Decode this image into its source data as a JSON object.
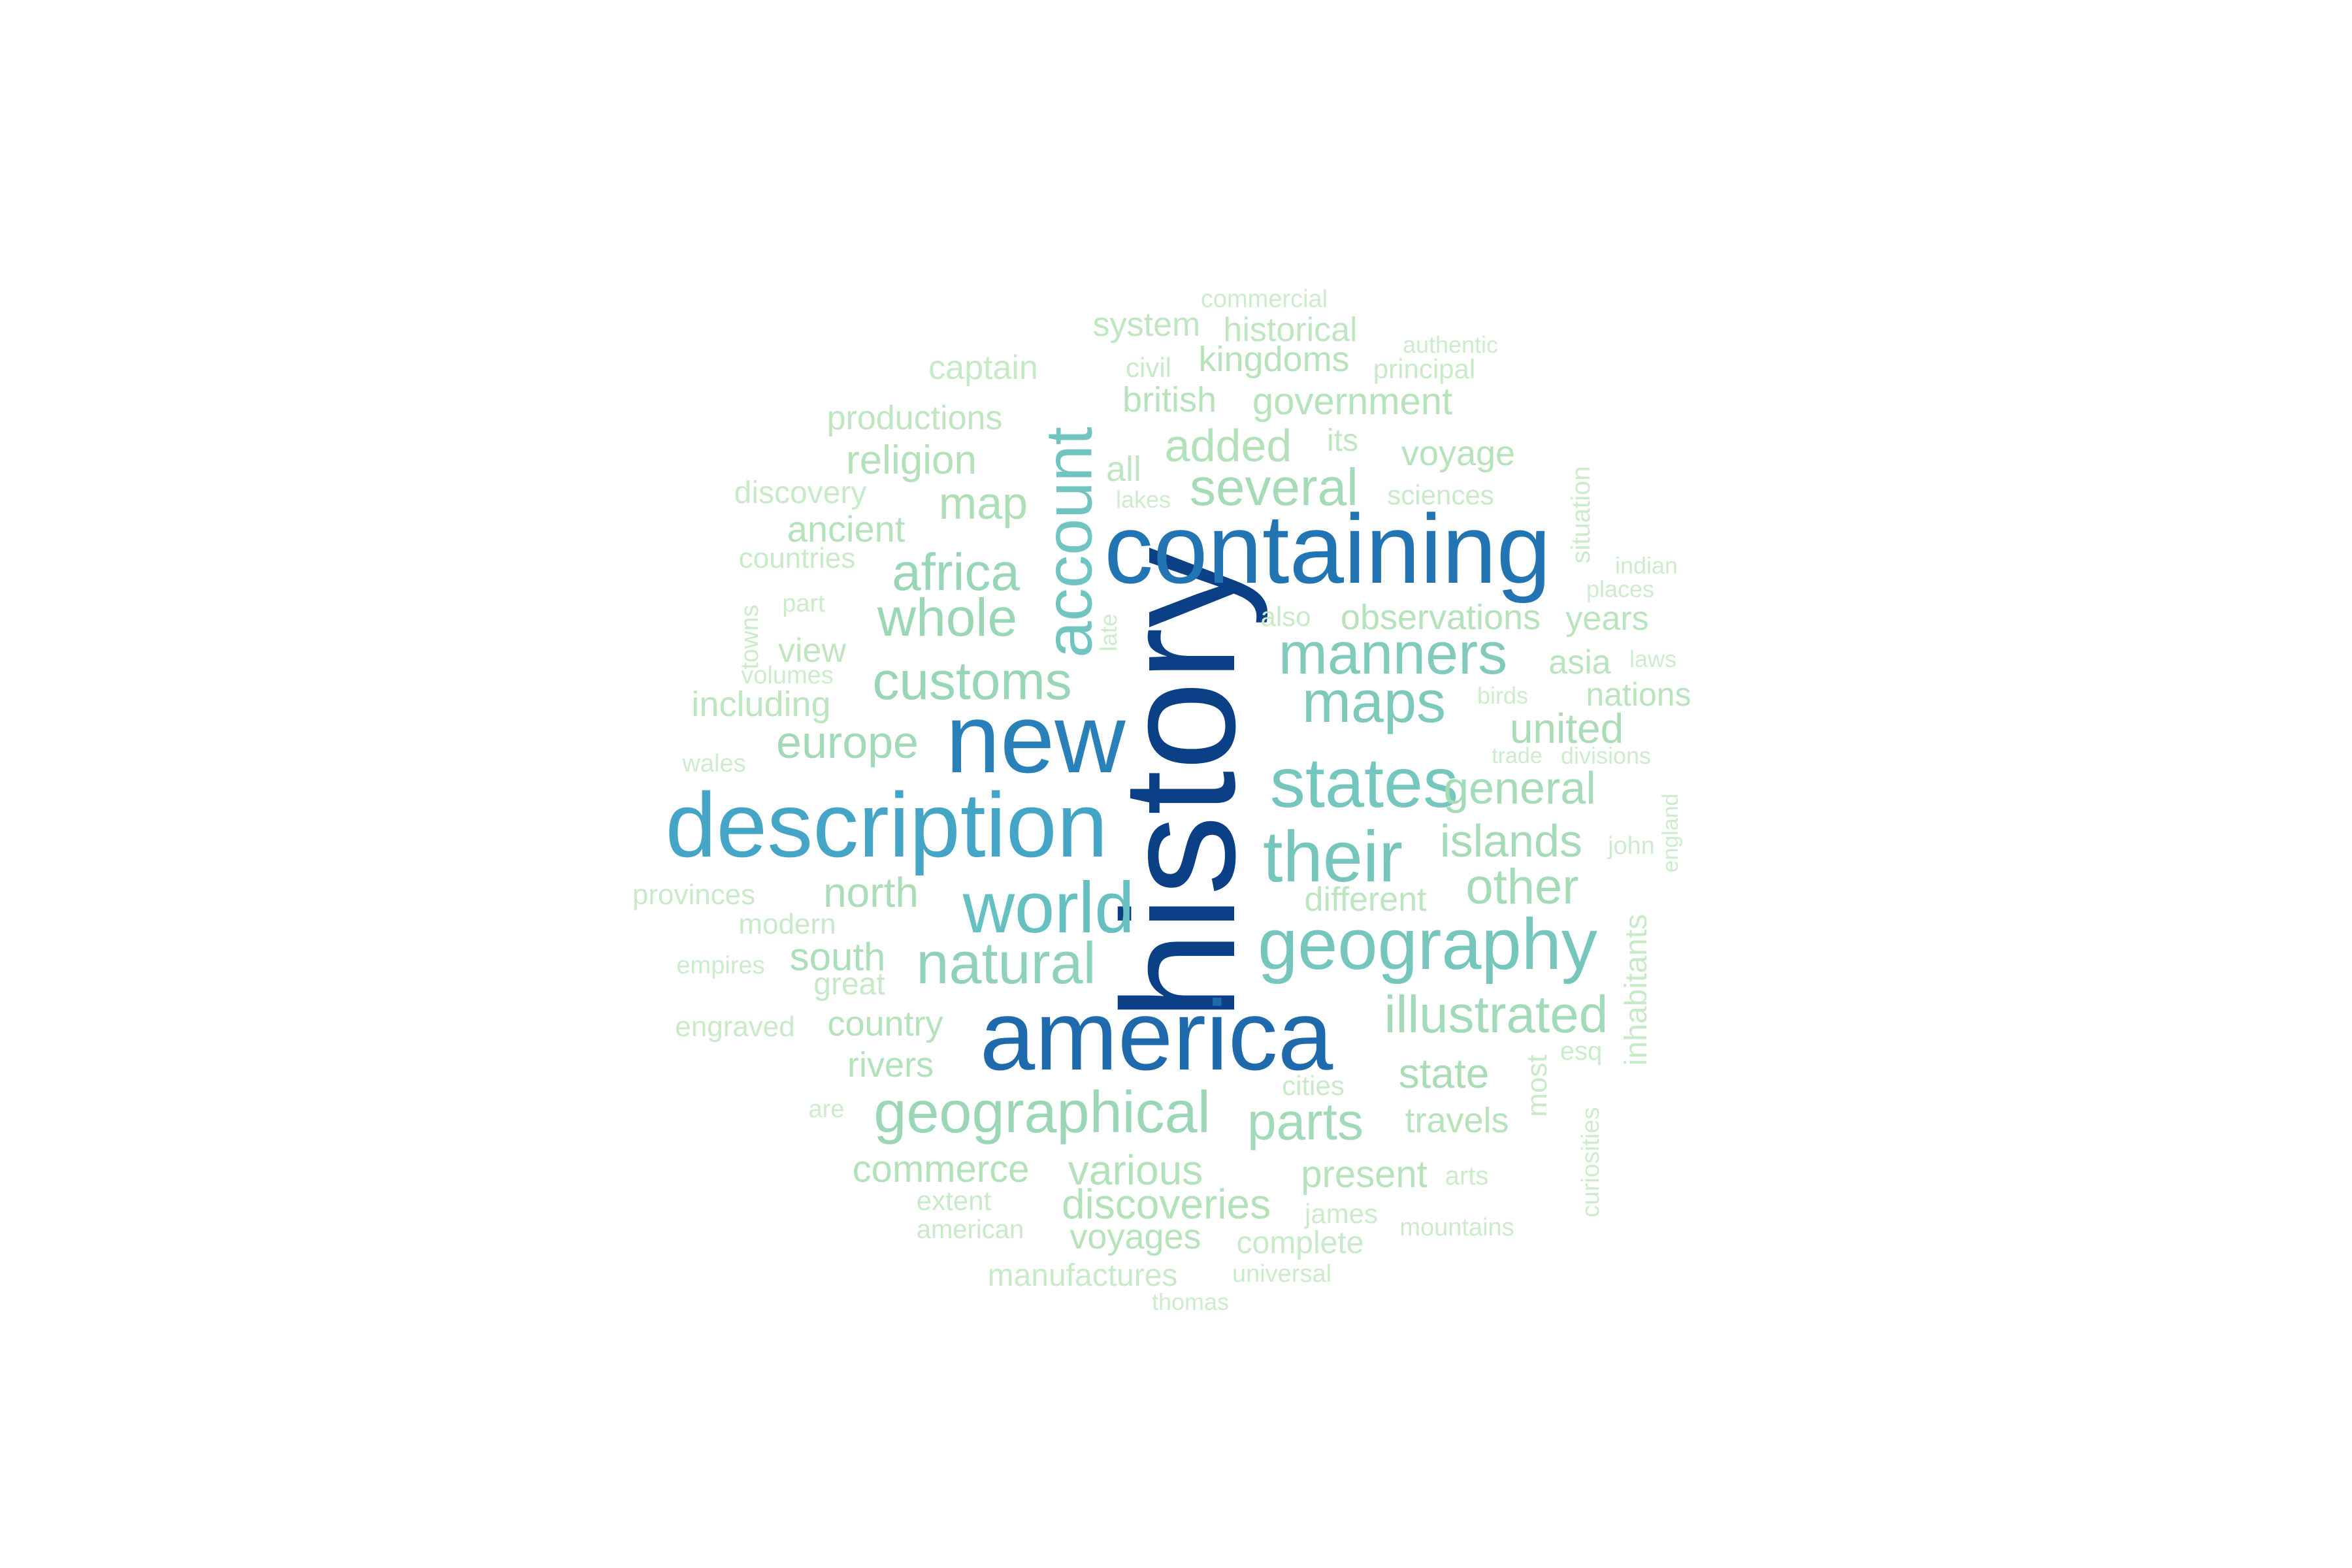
{
  "wordcloud": {
    "words": [
      {
        "text": "history",
        "color": "#0b3f86"
      },
      {
        "text": "america",
        "color": "#1f6aac"
      },
      {
        "text": "containing",
        "color": "#2274b3"
      },
      {
        "text": "new",
        "color": "#2a81ba"
      },
      {
        "text": "description",
        "color": "#44a5c6"
      },
      {
        "text": "account",
        "color": "#72c4c0"
      },
      {
        "text": "world",
        "color": "#66bfc1"
      },
      {
        "text": "states",
        "color": "#74c6be"
      },
      {
        "text": "their",
        "color": "#76c6bd"
      },
      {
        "text": "geography",
        "color": "#76c6bd"
      },
      {
        "text": "maps",
        "color": "#7dc9bc"
      },
      {
        "text": "manners",
        "color": "#82cbbb"
      },
      {
        "text": "natural",
        "color": "#8fd2b9"
      },
      {
        "text": "geographical",
        "color": "#9bd7b6"
      },
      {
        "text": "customs",
        "color": "#99d6b7"
      },
      {
        "text": "whole",
        "color": "#9bd7b7"
      },
      {
        "text": "africa",
        "color": "#99d6b7"
      },
      {
        "text": "illustrated",
        "color": "#a2daba"
      },
      {
        "text": "general",
        "color": "#a6dbb7"
      },
      {
        "text": "islands",
        "color": "#a6dbb7"
      },
      {
        "text": "other",
        "color": "#a6dbb7"
      },
      {
        "text": "europe",
        "color": "#a2d9b8"
      },
      {
        "text": "parts",
        "color": "#a2d9b8"
      },
      {
        "text": "several",
        "color": "#a6dbb7"
      },
      {
        "text": "united",
        "color": "#aaddb7"
      },
      {
        "text": "north",
        "color": "#aaddb8"
      },
      {
        "text": "state",
        "color": "#aaddb7"
      },
      {
        "text": "south",
        "color": "#acdeb9"
      },
      {
        "text": "map",
        "color": "#aedfb8"
      },
      {
        "text": "added",
        "color": "#b3e1b9"
      },
      {
        "text": "religion",
        "color": "#b3e1b9"
      },
      {
        "text": "observations",
        "color": "#b5e2ba"
      },
      {
        "text": "various",
        "color": "#b3e1b9"
      },
      {
        "text": "commerce",
        "color": "#b3e1b9"
      },
      {
        "text": "discoveries",
        "color": "#b3e1b9"
      },
      {
        "text": "rivers",
        "color": "#b3e1b9"
      },
      {
        "text": "country",
        "color": "#b5e2ba"
      },
      {
        "text": "ancient",
        "color": "#b5e2ba"
      },
      {
        "text": "government",
        "color": "#b7e3bc"
      },
      {
        "text": "kingdoms",
        "color": "#b7e3bc"
      },
      {
        "text": "british",
        "color": "#b7e3bc"
      },
      {
        "text": "voyage",
        "color": "#b7e3bc"
      },
      {
        "text": "travels",
        "color": "#b7e3bc"
      },
      {
        "text": "present",
        "color": "#b7e3bc"
      },
      {
        "text": "voyages",
        "color": "#b7e3bc"
      },
      {
        "text": "different",
        "color": "#bde5bf"
      },
      {
        "text": "asia",
        "color": "#bae4bd"
      },
      {
        "text": "nations",
        "color": "#bae4bd"
      },
      {
        "text": "years",
        "color": "#bae4bd"
      },
      {
        "text": "including",
        "color": "#bde5bf"
      },
      {
        "text": "productions",
        "color": "#c0e6c1"
      },
      {
        "text": "system",
        "color": "#c0e6c1"
      },
      {
        "text": "historical",
        "color": "#c0e6c1"
      },
      {
        "text": "view",
        "color": "#c0e6c1"
      },
      {
        "text": "all",
        "color": "#c0e6c1"
      },
      {
        "text": "its",
        "color": "#c0e6c1"
      },
      {
        "text": "great",
        "color": "#c7e9c6"
      },
      {
        "text": "captain",
        "color": "#c7e9c6"
      },
      {
        "text": "discovery",
        "color": "#c9eac8"
      },
      {
        "text": "countries",
        "color": "#c9eac8"
      },
      {
        "text": "modern",
        "color": "#c9eac8"
      },
      {
        "text": "provinces",
        "color": "#c9eac8"
      },
      {
        "text": "engraved",
        "color": "#c9eac8"
      },
      {
        "text": "complete",
        "color": "#c9eac8"
      },
      {
        "text": "manufactures",
        "color": "#c9eac8"
      },
      {
        "text": "extent",
        "color": "#c9eac8"
      },
      {
        "text": "american",
        "color": "#c9eac8"
      },
      {
        "text": "cities",
        "color": "#c9eac8"
      },
      {
        "text": "also",
        "color": "#c9eac8"
      },
      {
        "text": "sciences",
        "color": "#c9eac8"
      },
      {
        "text": "principal",
        "color": "#c9eac8"
      },
      {
        "text": "civil",
        "color": "#c9eac8"
      },
      {
        "text": "inhabitants",
        "color": "#c9eac8"
      },
      {
        "text": "most",
        "color": "#c9eac8"
      },
      {
        "text": "part",
        "color": "#cbebcb"
      },
      {
        "text": "towns",
        "color": "#cbebcb"
      },
      {
        "text": "situation",
        "color": "#cbebcb"
      },
      {
        "text": "empires",
        "color": "#cbebcb"
      },
      {
        "text": "universal",
        "color": "#cbebcb"
      },
      {
        "text": "james",
        "color": "#cbebcb"
      },
      {
        "text": "arts",
        "color": "#cbebcb"
      },
      {
        "text": "esq",
        "color": "#cbebcb"
      },
      {
        "text": "mountains",
        "color": "#cbebcb"
      },
      {
        "text": "volumes",
        "color": "#cdecce"
      },
      {
        "text": "wales",
        "color": "#cdecce"
      },
      {
        "text": "are",
        "color": "#cdecce"
      },
      {
        "text": "commercial",
        "color": "#cdecce"
      },
      {
        "text": "authentic",
        "color": "#cdecce"
      },
      {
        "text": "lakes",
        "color": "#cdecce"
      },
      {
        "text": "late",
        "color": "#cdecce"
      },
      {
        "text": "places",
        "color": "#cdecce"
      },
      {
        "text": "indian",
        "color": "#cdecce"
      },
      {
        "text": "laws",
        "color": "#cdecce"
      },
      {
        "text": "birds",
        "color": "#cdecce"
      },
      {
        "text": "trade",
        "color": "#cdecce"
      },
      {
        "text": "divisions",
        "color": "#cdecce"
      },
      {
        "text": "john",
        "color": "#cdecce"
      },
      {
        "text": "england",
        "color": "#cdecce"
      },
      {
        "text": "curiosities",
        "color": "#cdecce"
      },
      {
        "text": "thomas",
        "color": "#cdecce"
      }
    ]
  }
}
